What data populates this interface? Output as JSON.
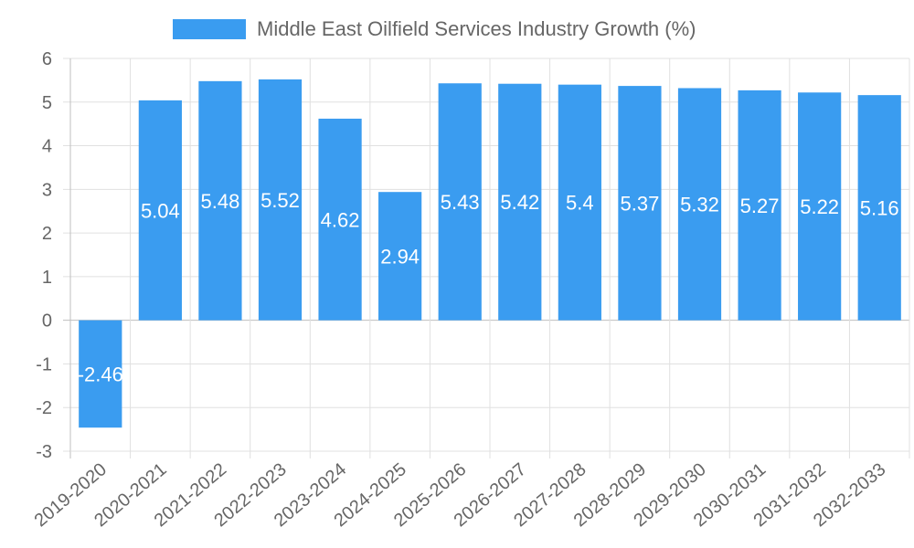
{
  "chart_data": {
    "type": "bar",
    "categories": [
      "2019-2020",
      "2020-2021",
      "2021-2022",
      "2022-2023",
      "2023-2024",
      "2024-2025",
      "2025-2026",
      "2026-2027",
      "2027-2028",
      "2028-2029",
      "2029-2030",
      "2030-2031",
      "2031-2032",
      "2032-2033"
    ],
    "series": [
      {
        "name": "Middle East Oilfield Services Industry Growth (%)",
        "values": [
          -2.46,
          5.04,
          5.48,
          5.52,
          4.62,
          2.94,
          5.43,
          5.42,
          5.4,
          5.37,
          5.32,
          5.27,
          5.22,
          5.16
        ],
        "labels": [
          "-2.46",
          "5.04",
          "5.48",
          "5.52",
          "4.62",
          "2.94",
          "5.43",
          "5.42",
          "5.4",
          "5.37",
          "5.32",
          "5.27",
          "5.22",
          "5.16"
        ]
      }
    ],
    "ylim": [
      -3,
      6
    ],
    "yticks": [
      "-3",
      "-2",
      "-1",
      "0",
      "1",
      "2",
      "3",
      "4",
      "5",
      "6"
    ],
    "grid": true,
    "legend_position": "top",
    "colors": {
      "bar": "#3a9cf0",
      "grid": "#e0e0e0",
      "axis": "#bfbfbf",
      "text": "#666666"
    }
  }
}
